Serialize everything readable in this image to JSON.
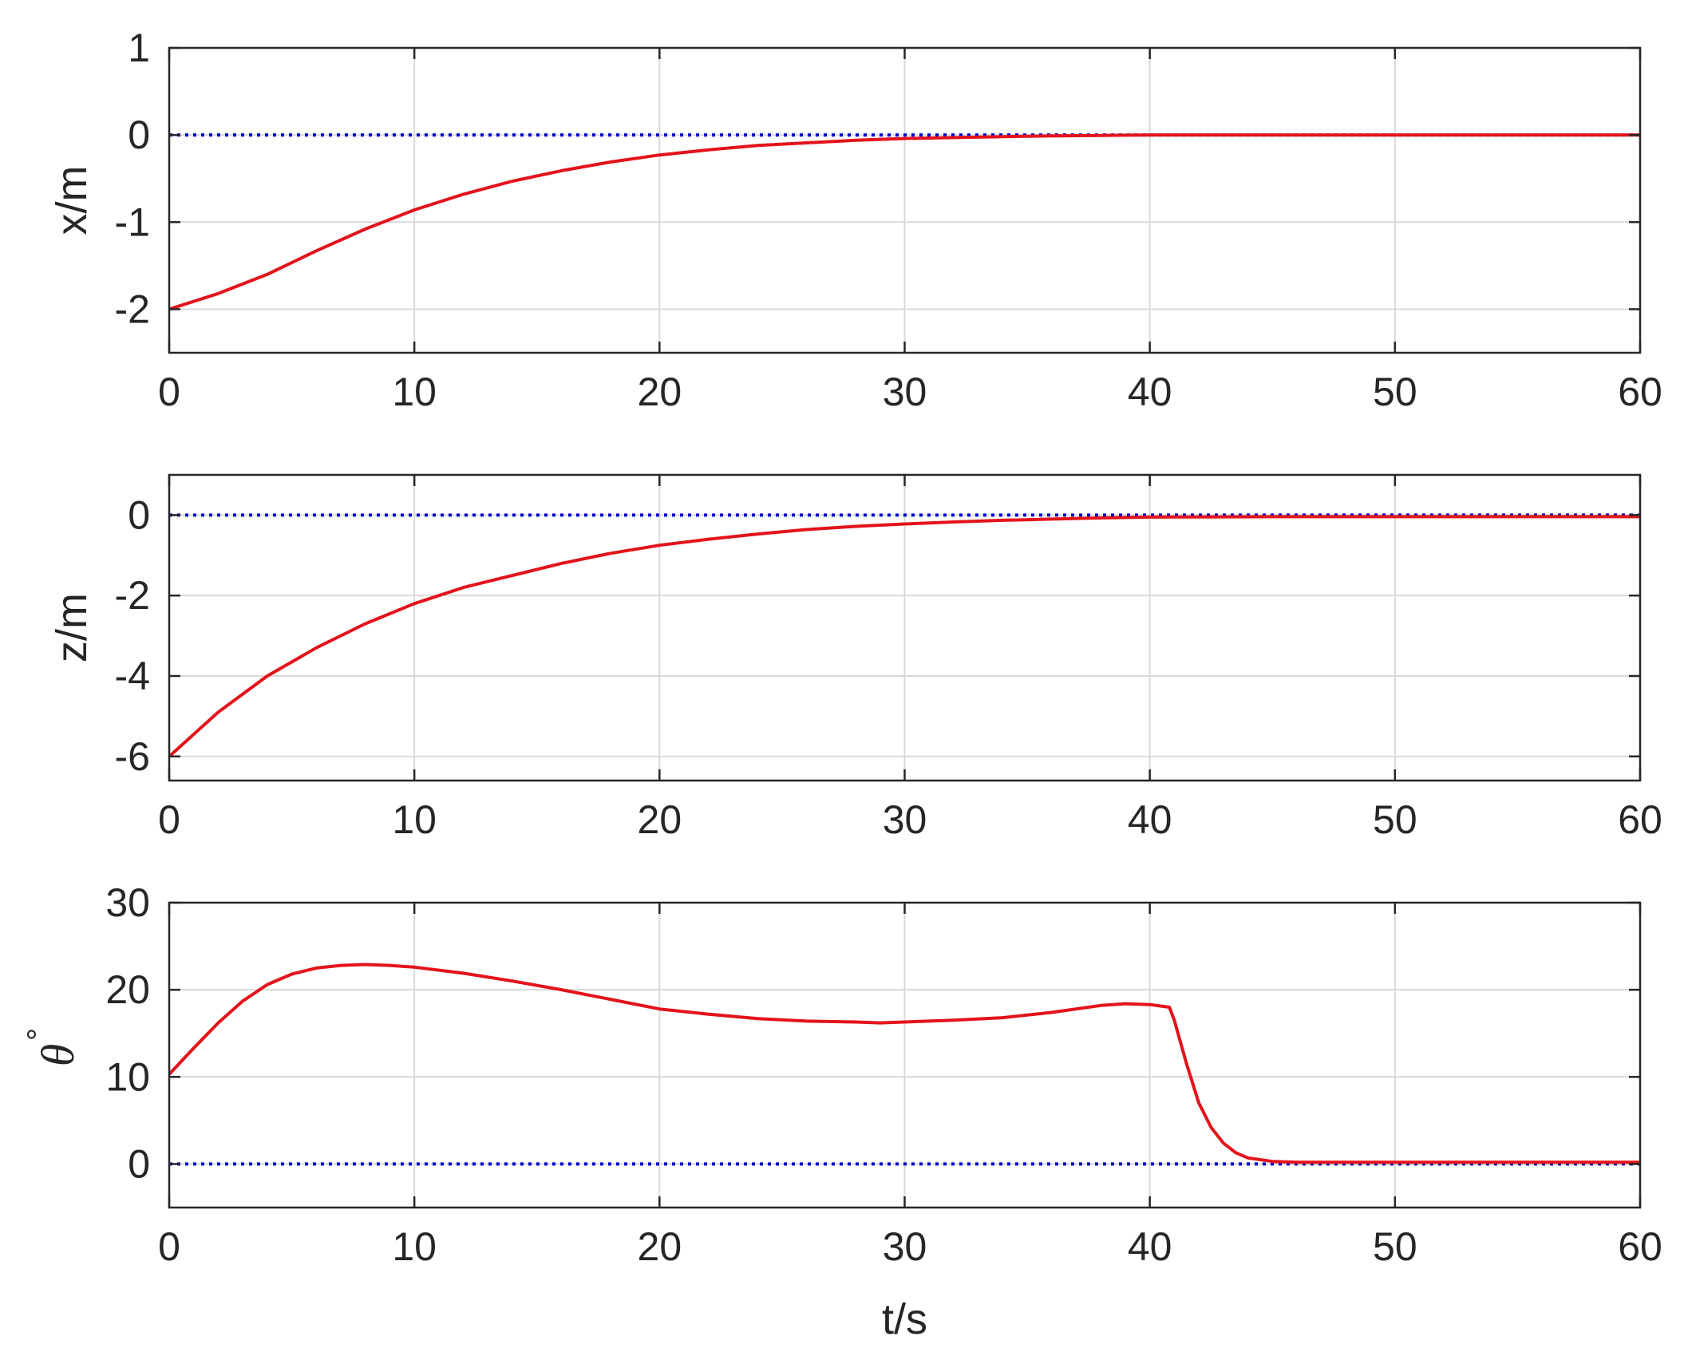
{
  "chart_data": [
    {
      "type": "line",
      "xlabel": "",
      "ylabel": "x/m",
      "xlim": [
        0,
        60
      ],
      "ylim": [
        -2.5,
        1
      ],
      "xticks": [
        "0",
        "10",
        "20",
        "30",
        "40",
        "50",
        "60"
      ],
      "yticks": [
        "-2",
        "-1",
        "0",
        "1"
      ],
      "grid": true,
      "series": [
        {
          "color": "#0000cc",
          "style": "dotted",
          "x": [
            0,
            60
          ],
          "y": [
            0,
            0
          ]
        },
        {
          "color": "#e3131b",
          "style": "solid",
          "x": [
            0,
            2,
            4,
            6,
            8,
            10,
            12,
            14,
            16,
            18,
            20,
            22,
            24,
            26,
            28,
            30,
            32,
            34,
            36,
            38,
            40,
            45,
            50,
            55,
            60
          ],
          "y": [
            -2.0,
            -1.82,
            -1.6,
            -1.33,
            -1.08,
            -0.86,
            -0.68,
            -0.53,
            -0.41,
            -0.31,
            -0.23,
            -0.17,
            -0.12,
            -0.09,
            -0.06,
            -0.04,
            -0.03,
            -0.02,
            -0.01,
            -0.005,
            0,
            0,
            0,
            0,
            0
          ]
        }
      ]
    },
    {
      "type": "line",
      "xlabel": "",
      "ylabel": "z/m",
      "xlim": [
        0,
        60
      ],
      "ylim": [
        -6.6,
        1
      ],
      "xticks": [
        "0",
        "10",
        "20",
        "30",
        "40",
        "50",
        "60"
      ],
      "yticks": [
        "-6",
        "-4",
        "-2",
        "0"
      ],
      "grid": true,
      "series": [
        {
          "color": "#0000cc",
          "style": "dotted",
          "x": [
            0,
            60
          ],
          "y": [
            0,
            0
          ]
        },
        {
          "color": "#e3131b",
          "style": "solid",
          "x": [
            0,
            2,
            4,
            6,
            8,
            10,
            12,
            14,
            16,
            18,
            20,
            22,
            24,
            26,
            28,
            30,
            32,
            34,
            36,
            38,
            40,
            45,
            50,
            55,
            60
          ],
          "y": [
            -6.0,
            -4.9,
            -4.0,
            -3.3,
            -2.7,
            -2.2,
            -1.8,
            -1.5,
            -1.2,
            -0.95,
            -0.75,
            -0.6,
            -0.47,
            -0.36,
            -0.28,
            -0.22,
            -0.17,
            -0.13,
            -0.1,
            -0.07,
            -0.05,
            -0.04,
            -0.04,
            -0.04,
            -0.04
          ]
        }
      ]
    },
    {
      "type": "line",
      "xlabel": "t/s",
      "ylabel": "θ°",
      "ylabel_symbol": "θ",
      "ylabel_unit": "°",
      "xlim": [
        0,
        60
      ],
      "ylim": [
        -5,
        30
      ],
      "xticks": [
        "0",
        "10",
        "20",
        "30",
        "40",
        "50",
        "60"
      ],
      "yticks": [
        "0",
        "10",
        "20",
        "30"
      ],
      "grid": true,
      "series": [
        {
          "color": "#0000cc",
          "style": "dotted",
          "x": [
            0,
            60
          ],
          "y": [
            0,
            0
          ]
        },
        {
          "color": "#e3131b",
          "style": "solid",
          "x": [
            0,
            1,
            2,
            3,
            4,
            5,
            6,
            7,
            8,
            9,
            10,
            12,
            14,
            16,
            18,
            20,
            22,
            24,
            26,
            28,
            29,
            30,
            32,
            34,
            36,
            38,
            39,
            40,
            40.8,
            41,
            41.5,
            42,
            42.5,
            43,
            43.5,
            44,
            45,
            46,
            48,
            50,
            55,
            60
          ],
          "y": [
            10.3,
            13.3,
            16.2,
            18.7,
            20.6,
            21.8,
            22.5,
            22.8,
            22.9,
            22.8,
            22.6,
            21.9,
            21.0,
            20.0,
            18.9,
            17.8,
            17.2,
            16.7,
            16.4,
            16.3,
            16.2,
            16.3,
            16.5,
            16.8,
            17.4,
            18.2,
            18.4,
            18.3,
            18.0,
            16.5,
            11.5,
            7.0,
            4.2,
            2.4,
            1.3,
            0.7,
            0.3,
            0.2,
            0.2,
            0.2,
            0.2,
            0.2
          ]
        }
      ]
    }
  ]
}
